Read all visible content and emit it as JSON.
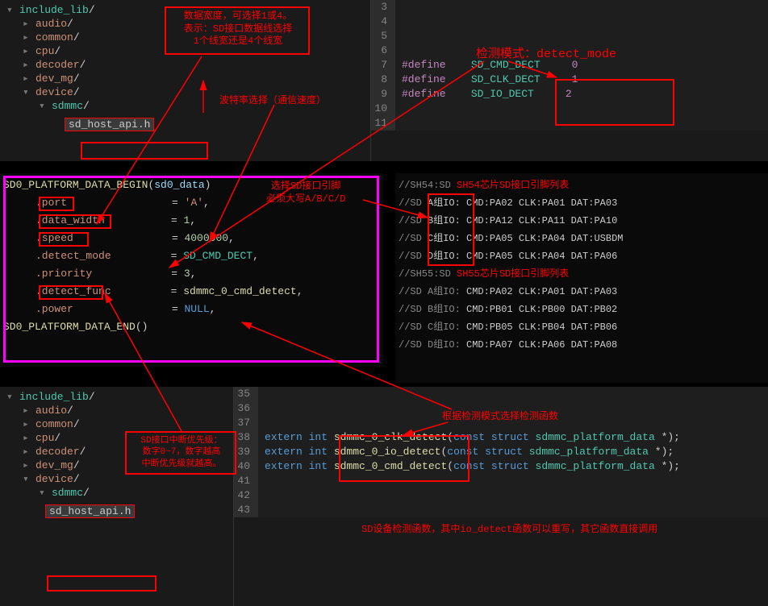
{
  "tree1": {
    "items": [
      {
        "arrow": "▾",
        "indent": 0,
        "name": "include_lib",
        "color": "#4ec9b0"
      },
      {
        "arrow": "▸",
        "indent": 20,
        "name": "audio",
        "color": "#ce9178"
      },
      {
        "arrow": "▸",
        "indent": 20,
        "name": "common",
        "color": "#ce9178"
      },
      {
        "arrow": "▸",
        "indent": 20,
        "name": "cpu",
        "color": "#ce9178"
      },
      {
        "arrow": "▸",
        "indent": 20,
        "name": "decoder",
        "color": "#ce9178"
      },
      {
        "arrow": "▸",
        "indent": 20,
        "name": "dev_mg",
        "color": "#ce9178"
      },
      {
        "arrow": "▾",
        "indent": 20,
        "name": "device",
        "color": "#ce9178"
      },
      {
        "arrow": "▾",
        "indent": 40,
        "name": "sdmmc",
        "color": "#4ec9b0"
      }
    ],
    "file": "sd_host_api.h"
  },
  "top_code": {
    "lines": [
      {
        "n": "3",
        "c": ""
      },
      {
        "n": "4",
        "c": ""
      },
      {
        "n": "5",
        "c": ""
      },
      {
        "n": "6",
        "c": ""
      },
      {
        "n": "7",
        "def": "#define",
        "mac": "SD_CMD_DECT",
        "val": "0"
      },
      {
        "n": "8",
        "def": "#define",
        "mac": "SD_CLK_DECT",
        "val": "1"
      },
      {
        "n": "9",
        "def": "#define",
        "mac": "SD_IO_DECT",
        "val": "2"
      },
      {
        "n": "10",
        "c": ""
      },
      {
        "n": "11",
        "c": ""
      }
    ]
  },
  "mid_left": {
    "begin_fn": "SD0_PLATFORM_DATA_BEGIN",
    "begin_arg": "sd0_data",
    "rows": [
      {
        "field": ".port",
        "eq": "=",
        "val": "'A'",
        "comma": ",",
        "vcol": "#ce9178"
      },
      {
        "field": ".data_width",
        "eq": "=",
        "val": "1",
        "comma": ",",
        "vcol": "#b5cea8"
      },
      {
        "field": ".speed",
        "eq": "=",
        "val": "4000000",
        "comma": ",",
        "vcol": "#b5cea8"
      },
      {
        "field": ".detect_mode",
        "eq": "=",
        "val": "SD_CMD_DECT",
        "comma": ",",
        "vcol": "#4ec9b0"
      },
      {
        "field": ".priority",
        "eq": "=",
        "val": "3",
        "comma": ",",
        "vcol": "#b5cea8"
      },
      {
        "field": ".detect_func",
        "eq": "=",
        "val": "sdmmc_0_cmd_detect",
        "comma": ",",
        "vcol": "#dcdcaa"
      },
      {
        "field": ".power",
        "eq": "=",
        "val": "NULL",
        "comma": ",",
        "vcol": "#569cd6"
      }
    ],
    "end_fn": "SD0_PLATFORM_DATA_END",
    "end_paren": "()"
  },
  "mid_right": {
    "header1_pre": "//SH54:SD ",
    "header1_red": "SH54芯片SD接口引脚列表",
    "rows1": [
      {
        "pre": "//SD ",
        "grp": "A组IO:",
        "cmd": "CMD:PA02",
        "clk": "CLK:PA01",
        "dat": "DAT:PA03"
      },
      {
        "pre": "//SD ",
        "grp": "B组IO:",
        "cmd": "CMD:PA12",
        "clk": "CLK:PA11",
        "dat": "DAT:PA10"
      },
      {
        "pre": "//SD ",
        "grp": "C组IO:",
        "cmd": "CMD:PA05",
        "clk": "CLK:PA04",
        "dat": "DAT:USBDM"
      },
      {
        "pre": "//SD ",
        "grp": "D组IO:",
        "cmd": "CMD:PA05",
        "clk": "CLK:PA04",
        "dat": "DAT:PA06"
      }
    ],
    "header2_pre": "//SH55:SD ",
    "header2_red": "SH55芯片SD接口引脚列表",
    "rows2": [
      {
        "pre": "//SD A组IO:",
        "cmd": "CMD:PA02",
        "clk": "CLK:PA01",
        "dat": "DAT:PA03"
      },
      {
        "pre": "//SD B组IO:",
        "cmd": "CMD:PB01",
        "clk": "CLK:PB00",
        "dat": "DAT:PB02"
      },
      {
        "pre": "//SD C组IO:",
        "cmd": "CMD:PB05",
        "clk": "CLK:PB04",
        "dat": "DAT:PB06"
      },
      {
        "pre": "//SD D组IO:",
        "cmd": "CMD:PA07",
        "clk": "CLK:PA06",
        "dat": "DAT:PA08"
      }
    ]
  },
  "bot_code": {
    "lines": [
      {
        "n": "35"
      },
      {
        "n": "36"
      },
      {
        "n": "37"
      },
      {
        "n": "38",
        "ext": "extern",
        "int": "int",
        "fn": "sdmmc_0_clk_detect",
        "sig": "(const struct sdmmc_platform_data *);"
      },
      {
        "n": "39",
        "ext": "extern",
        "int": "int",
        "fn": "sdmmc_0_io_detect",
        "sig": "(const struct sdmmc_platform_data *);"
      },
      {
        "n": "40",
        "ext": "extern",
        "int": "int",
        "fn": "sdmmc_0_cmd_detect",
        "sig": "(const struct sdmmc_platform_data *);"
      },
      {
        "n": "41"
      },
      {
        "n": "42"
      },
      {
        "n": "43"
      }
    ]
  },
  "annotations": {
    "a1": "数据宽度，可选择1或4。\n表示：SD接口数据线选择\n1个线宽还是4个线宽",
    "a2": "波特率选择（通信速度）",
    "a3": "检测模式：detect_mode",
    "a4": "选择SD接口引脚\n必须大写A/B/C/D",
    "a5": "SD接口中断优先级：\n数字0~7，数字越高\n中断优先级就越高。",
    "a6": "根据检测模式选择检测函数",
    "a7": "SD设备检测函数，其中io_detect函数可以重写，其它函数直接调用"
  }
}
